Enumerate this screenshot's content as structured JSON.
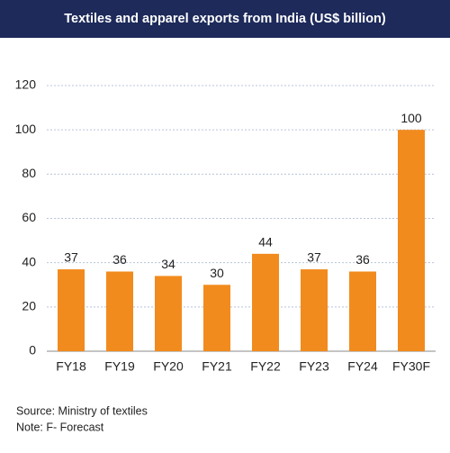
{
  "chart_data": {
    "type": "bar",
    "title": "Textiles and apparel exports from India (US$ billion)",
    "categories": [
      "FY18",
      "FY19",
      "FY20",
      "FY21",
      "FY22",
      "FY23",
      "FY24",
      "FY30F"
    ],
    "values": [
      37,
      36,
      34,
      30,
      44,
      37,
      36,
      100
    ],
    "color": "#f28b1e",
    "ylim": [
      0,
      120
    ],
    "yticks": [
      0,
      20,
      40,
      60,
      80,
      100,
      120
    ],
    "grid": true,
    "source": "Source: Ministry of textiles",
    "note": "Note: F- Forecast"
  }
}
